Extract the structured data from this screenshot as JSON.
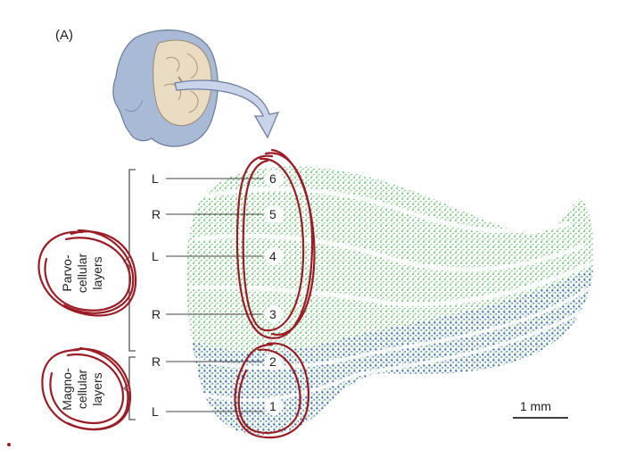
{
  "panel_label": "(A)",
  "layer_labels": [
    {
      "eye": "L",
      "number": "6"
    },
    {
      "eye": "R",
      "number": "5"
    },
    {
      "eye": "L",
      "number": "4"
    },
    {
      "eye": "R",
      "number": "3"
    },
    {
      "eye": "R",
      "number": "2"
    },
    {
      "eye": "L",
      "number": "1"
    }
  ],
  "groups": {
    "parvo": [
      "Parvo-",
      "cellular",
      "layers"
    ],
    "magno": [
      "Magno-",
      "cellular",
      "layers"
    ]
  },
  "scale_bar": {
    "label": "1 mm"
  },
  "colors": {
    "parvo": "#3fae49",
    "magno": "#3a63b8",
    "annotation": "#9b1c25",
    "arrow": "#c9d3ea",
    "arrow_stroke": "#6f7f9f"
  }
}
